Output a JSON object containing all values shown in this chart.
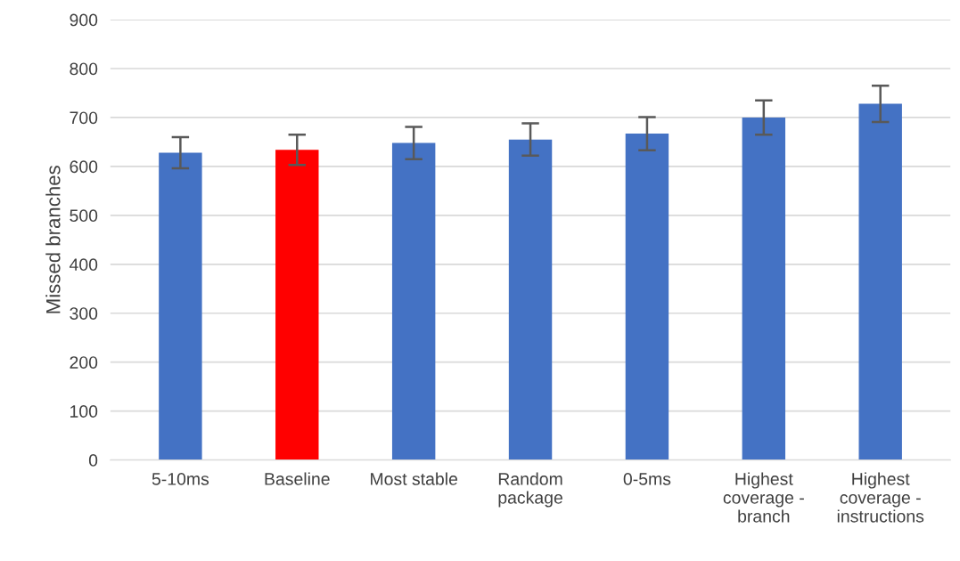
{
  "chart_data": {
    "type": "bar",
    "ylabel": "Missed branches",
    "categories": [
      "5-10ms",
      "Baseline",
      "Most stable",
      "Random package",
      "0-5ms",
      "Highest coverage - branch",
      "Highest coverage - instructions"
    ],
    "values": [
      628,
      634,
      648,
      655,
      667,
      700,
      728
    ],
    "errors": [
      32,
      31,
      33,
      33,
      34,
      35,
      37
    ],
    "colors": [
      "#4472c4",
      "#ff0000",
      "#4472c4",
      "#4472c4",
      "#4472c4",
      "#4472c4",
      "#4472c4"
    ],
    "ylim": [
      0,
      900
    ],
    "yticks": [
      0,
      100,
      200,
      300,
      400,
      500,
      600,
      700,
      800,
      900
    ],
    "grid": "y"
  }
}
